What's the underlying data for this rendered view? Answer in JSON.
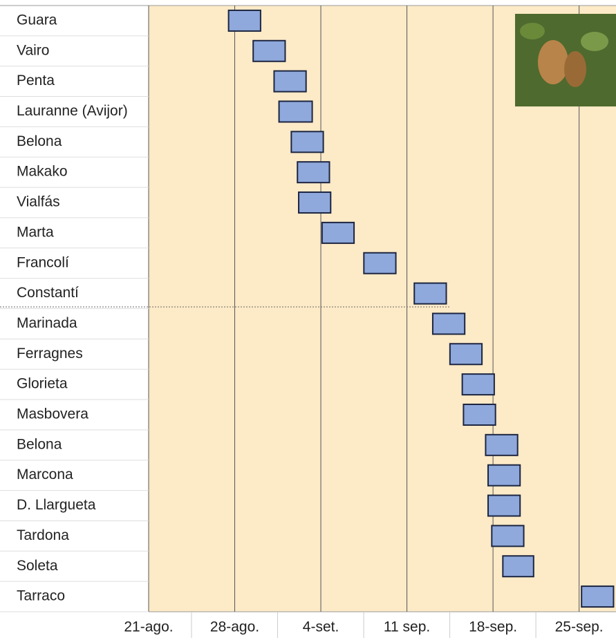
{
  "chart_data": {
    "type": "gantt",
    "categories": [
      "Guara",
      "Vairo",
      "Penta",
      "Lauranne (Avijor)",
      "Belona",
      "Makako",
      "Vialfás",
      "Marta",
      "Francolí",
      "Constantí",
      "Marinada",
      "Ferragnes",
      "Glorieta",
      "Masbovera",
      "Belona",
      "Marcona",
      "D. Llargueta",
      "Tardona",
      "Soleta",
      "Tarraco"
    ],
    "start": [
      6.5,
      8.5,
      10.2,
      10.6,
      11.6,
      12.1,
      12.2,
      14.1,
      17.5,
      21.6,
      23.1,
      24.5,
      25.5,
      25.6,
      27.4,
      27.6,
      27.6,
      27.9,
      28.8,
      35.2
    ],
    "end": [
      9.1,
      11.1,
      12.8,
      13.3,
      14.2,
      14.7,
      14.8,
      16.7,
      20.1,
      24.2,
      25.7,
      27.1,
      28.1,
      28.2,
      30.0,
      30.2,
      30.2,
      30.5,
      31.3,
      37.8
    ],
    "color": "#8fa9dc",
    "xlim": [
      0,
      38
    ],
    "xticks": [
      {
        "value": 0,
        "label": "21-ago."
      },
      {
        "value": 7,
        "label": "28-ago."
      },
      {
        "value": 14,
        "label": "4-set."
      },
      {
        "value": 21,
        "label": "11 sep."
      },
      {
        "value": 28,
        "label": "18-sep."
      },
      {
        "value": 35,
        "label": "25-sep."
      }
    ],
    "grid": true
  }
}
